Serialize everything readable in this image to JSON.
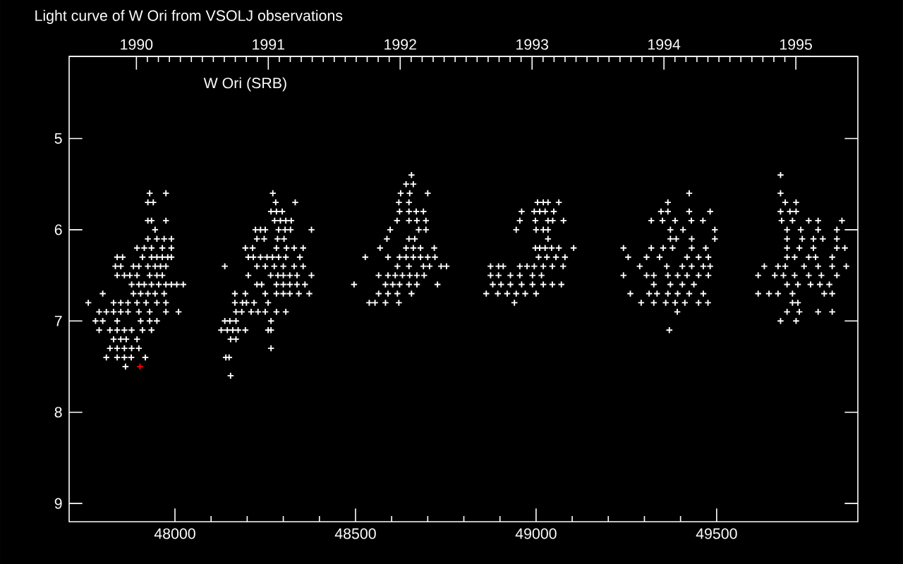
{
  "chart_data": {
    "type": "scatter",
    "title": "Light curve of W Ori from VSOLJ observations",
    "annotations": [
      "W Ori (SRB)"
    ],
    "marker": "cross",
    "xlim": [
      47707,
      49891
    ],
    "ylim": [
      9.2,
      4.1
    ],
    "xticks": [
      48000,
      48500,
      49000,
      49500
    ],
    "yticks": [
      5,
      6,
      7,
      8,
      9
    ],
    "x2lim": [
      1989.49,
      1995.47
    ],
    "x2ticks": [
      1990,
      1991,
      1992,
      1993,
      1994,
      1995
    ],
    "series": [
      {
        "color": "#ffffff",
        "x": [
          47930,
          47975,
          47925,
          47940,
          47925,
          47935,
          47975,
          47945,
          47925,
          47950,
          47970,
          47990,
          47895,
          47915,
          47935,
          47965,
          47990,
          47840,
          47855,
          47910,
          47935,
          47950,
          47965,
          47980,
          47990,
          47835,
          47850,
          47885,
          47900,
          47925,
          47945,
          47960,
          47975,
          47840,
          47860,
          47875,
          47895,
          47930,
          47950,
          47965,
          47880,
          47900,
          47915,
          47935,
          47955,
          47975,
          47990,
          48005,
          48023,
          47800,
          47885,
          47905,
          47925,
          47945,
          47970,
          47760,
          47830,
          47850,
          47870,
          47895,
          47920,
          47950,
          47975,
          47790,
          47810,
          47830,
          47850,
          47870,
          47900,
          47930,
          47975,
          48010,
          47780,
          47800,
          47840,
          47905,
          47930,
          47950,
          47790,
          47820,
          47840,
          47860,
          47880,
          47910,
          47935,
          47830,
          47850,
          47865,
          47895,
          47820,
          47840,
          47860,
          47880,
          47900,
          47810,
          47840,
          47860,
          47879,
          47918,
          47863,
          48271,
          48279,
          48333,
          48266,
          48281,
          48297,
          48276,
          48292,
          48307,
          48322,
          48223,
          48237,
          48250,
          48287,
          48305,
          48320,
          48378,
          48227,
          48247,
          48284,
          48302,
          48195,
          48215,
          48281,
          48309,
          48330,
          48355,
          48203,
          48217,
          48237,
          48255,
          48270,
          48287,
          48307,
          48346,
          48138,
          48227,
          48250,
          48275,
          48300,
          48330,
          48355,
          48203,
          48265,
          48285,
          48300,
          48318,
          48338,
          48378,
          48227,
          48240,
          48281,
          48300,
          48318,
          48338,
          48360,
          48166,
          48195,
          48250,
          48281,
          48300,
          48318,
          48343,
          48372,
          48166,
          48187,
          48198,
          48219,
          48258,
          48169,
          48185,
          48211,
          48230,
          48250,
          48281,
          48307,
          48138,
          48152,
          48169,
          48266,
          48128,
          48145,
          48160,
          48175,
          48195,
          48258,
          48266,
          48154,
          48169,
          48266,
          48141,
          48150,
          48154,
          48655,
          48640,
          48660,
          48625,
          48650,
          48700,
          48620,
          48648,
          48622,
          48648,
          48668,
          48688,
          48615,
          48648,
          48670,
          48695,
          48596,
          48675,
          48695,
          48587,
          48648,
          48664,
          48568,
          48640,
          48660,
          48680,
          48718,
          48527,
          48590,
          48622,
          48640,
          48660,
          48680,
          48700,
          48720,
          48616,
          48648,
          48688,
          48705,
          48737,
          48752,
          48564,
          48590,
          48610,
          48630,
          48650,
          48670,
          48690,
          48496,
          48583,
          48603,
          48622,
          48648,
          48670,
          48727,
          48564,
          48590,
          48616,
          48655,
          48538,
          48554,
          48583,
          48620,
          49004,
          49020,
          49033,
          49063,
          48960,
          48995,
          49010,
          49025,
          49049,
          48955,
          48998,
          49033,
          49046,
          49076,
          48945,
          49000,
          49020,
          49033,
          49033,
          48998,
          49010,
          49025,
          49043,
          49063,
          49104,
          49007,
          49030,
          49055,
          49080,
          48874,
          48896,
          48909,
          48955,
          48975,
          48995,
          49020,
          49045,
          49075,
          48874,
          48896,
          48929,
          48955,
          48990,
          49015,
          48880,
          48903,
          48929,
          48960,
          48990,
          49020,
          49045,
          49070,
          48862,
          48894,
          48920,
          48945,
          48970,
          49000,
          48940,
          49424,
          49365,
          49346,
          49365,
          49424,
          49482,
          49319,
          49350,
          49385,
          49430,
          49462,
          49372,
          49407,
          49495,
          49372,
          49388,
          49431,
          49495,
          49242,
          49319,
          49352,
          49378,
          49431,
          49470,
          49255,
          49306,
          49342,
          49418,
          49450,
          49477,
          49287,
          49362,
          49405,
          49431,
          49463,
          49482,
          49242,
          49306,
          49326,
          49365,
          49392,
          49418,
          49450,
          49477,
          49326,
          49372,
          49405,
          49437,
          49261,
          49313,
          49335,
          49365,
          49392,
          49424,
          49463,
          49291,
          49326,
          49359,
          49385,
          49412,
          49450,
          49476,
          49391,
          49369,
          49677,
          49677,
          49690,
          49720,
          49677,
          49703,
          49720,
          49680,
          49710,
          49755,
          49781,
          49847,
          49695,
          49733,
          49781,
          49833,
          49695,
          49737,
          49768,
          49794,
          49833,
          49695,
          49729,
          49768,
          49833,
          49855,
          49695,
          49716,
          49755,
          49774,
          49820,
          49632,
          49670,
          49690,
          49742,
          49781,
          49820,
          49859,
          49615,
          49661,
          49685,
          49716,
          49755,
          49790,
          49833,
          49695,
          49725,
          49760,
          49786,
          49812,
          49615,
          49645,
          49670,
          49710,
          49798,
          49820,
          49710,
          49725,
          49695,
          49729,
          49781,
          49820,
          49677,
          49720
        ],
        "values": [
          5.6,
          5.6,
          5.7,
          5.7,
          5.9,
          5.9,
          5.9,
          6.0,
          6.1,
          6.1,
          6.1,
          6.1,
          6.2,
          6.2,
          6.2,
          6.2,
          6.2,
          6.3,
          6.3,
          6.3,
          6.3,
          6.3,
          6.3,
          6.3,
          6.3,
          6.4,
          6.4,
          6.4,
          6.4,
          6.4,
          6.4,
          6.4,
          6.4,
          6.5,
          6.5,
          6.5,
          6.5,
          6.5,
          6.5,
          6.5,
          6.6,
          6.6,
          6.6,
          6.6,
          6.6,
          6.6,
          6.6,
          6.6,
          6.6,
          6.7,
          6.7,
          6.7,
          6.7,
          6.7,
          6.7,
          6.8,
          6.8,
          6.8,
          6.8,
          6.8,
          6.8,
          6.8,
          6.8,
          6.9,
          6.9,
          6.9,
          6.9,
          6.9,
          6.9,
          6.9,
          6.9,
          6.9,
          7.0,
          7.0,
          7.0,
          7.0,
          7.0,
          7.0,
          7.1,
          7.1,
          7.1,
          7.1,
          7.1,
          7.1,
          7.1,
          7.2,
          7.2,
          7.2,
          7.2,
          7.3,
          7.3,
          7.3,
          7.3,
          7.3,
          7.4,
          7.4,
          7.4,
          7.4,
          7.4,
          7.5,
          5.6,
          5.7,
          5.7,
          5.8,
          5.8,
          5.8,
          5.9,
          5.9,
          5.9,
          5.9,
          6.0,
          6.0,
          6.0,
          6.0,
          6.0,
          6.0,
          6.0,
          6.1,
          6.1,
          6.1,
          6.1,
          6.2,
          6.2,
          6.2,
          6.2,
          6.2,
          6.2,
          6.3,
          6.3,
          6.3,
          6.3,
          6.3,
          6.3,
          6.3,
          6.3,
          6.4,
          6.4,
          6.4,
          6.4,
          6.4,
          6.4,
          6.4,
          6.5,
          6.5,
          6.5,
          6.5,
          6.5,
          6.5,
          6.5,
          6.6,
          6.6,
          6.6,
          6.6,
          6.6,
          6.6,
          6.6,
          6.7,
          6.7,
          6.7,
          6.7,
          6.7,
          6.7,
          6.7,
          6.7,
          6.8,
          6.8,
          6.8,
          6.8,
          6.8,
          6.9,
          6.9,
          6.9,
          6.9,
          6.9,
          6.9,
          6.9,
          7.0,
          7.0,
          7.0,
          7.0,
          7.1,
          7.1,
          7.1,
          7.1,
          7.1,
          7.1,
          7.1,
          7.2,
          7.2,
          7.3,
          7.4,
          7.4,
          7.6,
          5.4,
          5.5,
          5.5,
          5.6,
          5.6,
          5.6,
          5.7,
          5.7,
          5.8,
          5.8,
          5.8,
          5.8,
          5.9,
          5.9,
          5.9,
          5.9,
          6.0,
          6.0,
          6.0,
          6.1,
          6.1,
          6.1,
          6.2,
          6.2,
          6.2,
          6.2,
          6.2,
          6.3,
          6.3,
          6.3,
          6.3,
          6.3,
          6.3,
          6.3,
          6.3,
          6.4,
          6.4,
          6.4,
          6.4,
          6.4,
          6.4,
          6.5,
          6.5,
          6.5,
          6.5,
          6.5,
          6.5,
          6.5,
          6.6,
          6.6,
          6.6,
          6.6,
          6.6,
          6.6,
          6.6,
          6.7,
          6.7,
          6.7,
          6.7,
          6.8,
          6.8,
          6.8,
          6.8,
          5.7,
          5.7,
          5.7,
          5.7,
          5.8,
          5.8,
          5.8,
          5.8,
          5.8,
          5.9,
          5.9,
          5.9,
          5.9,
          5.9,
          6.0,
          6.0,
          6.0,
          6.0,
          6.1,
          6.2,
          6.2,
          6.2,
          6.2,
          6.2,
          6.2,
          6.3,
          6.3,
          6.3,
          6.3,
          6.4,
          6.4,
          6.4,
          6.4,
          6.4,
          6.4,
          6.4,
          6.4,
          6.4,
          6.5,
          6.5,
          6.5,
          6.5,
          6.5,
          6.5,
          6.6,
          6.6,
          6.6,
          6.6,
          6.6,
          6.6,
          6.6,
          6.6,
          6.7,
          6.7,
          6.7,
          6.7,
          6.7,
          6.7,
          6.8,
          5.6,
          5.7,
          5.8,
          5.8,
          5.8,
          5.8,
          5.9,
          5.9,
          5.9,
          5.9,
          5.9,
          6.0,
          6.0,
          6.0,
          6.1,
          6.1,
          6.1,
          6.1,
          6.2,
          6.2,
          6.2,
          6.2,
          6.2,
          6.2,
          6.3,
          6.3,
          6.3,
          6.3,
          6.3,
          6.3,
          6.4,
          6.4,
          6.4,
          6.4,
          6.4,
          6.4,
          6.5,
          6.5,
          6.5,
          6.5,
          6.5,
          6.5,
          6.5,
          6.5,
          6.6,
          6.6,
          6.6,
          6.6,
          6.7,
          6.7,
          6.7,
          6.7,
          6.7,
          6.7,
          6.7,
          6.8,
          6.8,
          6.8,
          6.8,
          6.8,
          6.8,
          6.8,
          6.9,
          7.1,
          5.4,
          5.6,
          5.7,
          5.7,
          5.8,
          5.8,
          5.8,
          5.9,
          5.9,
          5.9,
          5.9,
          5.9,
          6.0,
          6.0,
          6.0,
          6.0,
          6.1,
          6.1,
          6.1,
          6.1,
          6.1,
          6.2,
          6.2,
          6.2,
          6.2,
          6.2,
          6.3,
          6.3,
          6.3,
          6.3,
          6.3,
          6.4,
          6.4,
          6.4,
          6.4,
          6.4,
          6.4,
          6.4,
          6.5,
          6.5,
          6.5,
          6.5,
          6.5,
          6.5,
          6.5,
          6.6,
          6.6,
          6.6,
          6.6,
          6.6,
          6.7,
          6.7,
          6.7,
          6.7,
          6.7,
          6.7,
          6.8,
          6.8,
          6.9,
          6.9,
          6.9,
          6.9,
          7.0,
          7.0
        ]
      },
      {
        "color": "#ff0000",
        "x": [
          47903
        ],
        "values": [
          7.5
        ]
      }
    ]
  }
}
